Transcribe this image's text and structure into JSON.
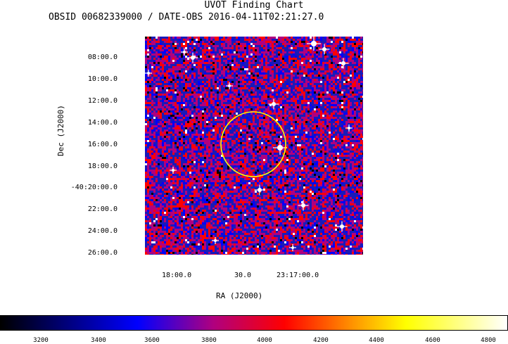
{
  "header": {
    "title": "UVOT Finding Chart",
    "subtitle": "OBSID 00682339000 / DATE-OBS 2016-04-11T02:21:27.0"
  },
  "axes": {
    "ylabel": "Dec (J2000)",
    "xlabel": "RA (J2000)",
    "yticks": [
      "08:00.0",
      "10:00.0",
      "12:00.0",
      "14:00.0",
      "16:00.0",
      "18:00.0",
      "-40:20:00.0",
      "22:00.0",
      "24:00.0",
      "26:00.0"
    ],
    "xticks": [
      "18:00.0",
      "30.0",
      "23:17:00.0"
    ]
  },
  "image": {
    "palette": [
      "#000000",
      "#0000ff",
      "#b0007f",
      "#ff0000",
      "#ffff00",
      "#ffffff"
    ],
    "circle_color": "#ffff00"
  },
  "colorbar": {
    "ticks": [
      "3200",
      "3400",
      "3600",
      "3800",
      "4000",
      "4200",
      "4400",
      "4600",
      "4800"
    ]
  }
}
